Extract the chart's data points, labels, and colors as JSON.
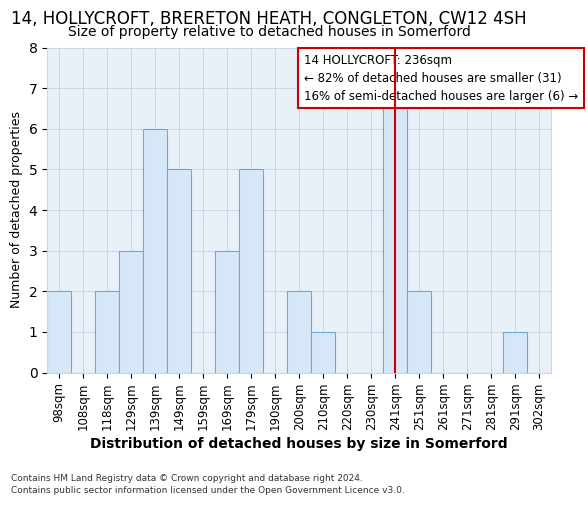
{
  "title": "14, HOLLYCROFT, BRERETON HEATH, CONGLETON, CW12 4SH",
  "subtitle": "Size of property relative to detached houses in Somerford",
  "xlabel": "Distribution of detached houses by size in Somerford",
  "ylabel": "Number of detached properties",
  "footer_line1": "Contains HM Land Registry data © Crown copyright and database right 2024.",
  "footer_line2": "Contains public sector information licensed under the Open Government Licence v3.0.",
  "bin_labels": [
    "98sqm",
    "108sqm",
    "118sqm",
    "129sqm",
    "139sqm",
    "149sqm",
    "159sqm",
    "169sqm",
    "179sqm",
    "190sqm",
    "200sqm",
    "210sqm",
    "220sqm",
    "230sqm",
    "241sqm",
    "251sqm",
    "261sqm",
    "271sqm",
    "281sqm",
    "291sqm",
    "302sqm"
  ],
  "bar_heights": [
    2,
    0,
    2,
    3,
    6,
    5,
    0,
    3,
    5,
    0,
    2,
    1,
    0,
    0,
    7,
    2,
    0,
    0,
    0,
    1,
    0
  ],
  "bar_color": "#d6e8f7",
  "bar_edge_color": "#6aaad4",
  "grid_color": "#c8d8e8",
  "property_line_idx": 14,
  "property_line_color": "#cc0000",
  "ann_line1": "14 HOLLYCROFT: 236sqm",
  "ann_line2": "← 82% of detached houses are smaller (31)",
  "ann_line3": "16% of semi-detached houses are larger (6) →",
  "ann_box_edgecolor": "#cc0000",
  "ylim": [
    0,
    8
  ],
  "yticks": [
    0,
    1,
    2,
    3,
    4,
    5,
    6,
    7,
    8
  ],
  "bg_color": "#ffffff",
  "plot_bg_color": "#e8f0f8",
  "title_fontsize": 12,
  "subtitle_fontsize": 10,
  "tick_fontsize": 8.5,
  "ylabel_fontsize": 9,
  "xlabel_fontsize": 10
}
